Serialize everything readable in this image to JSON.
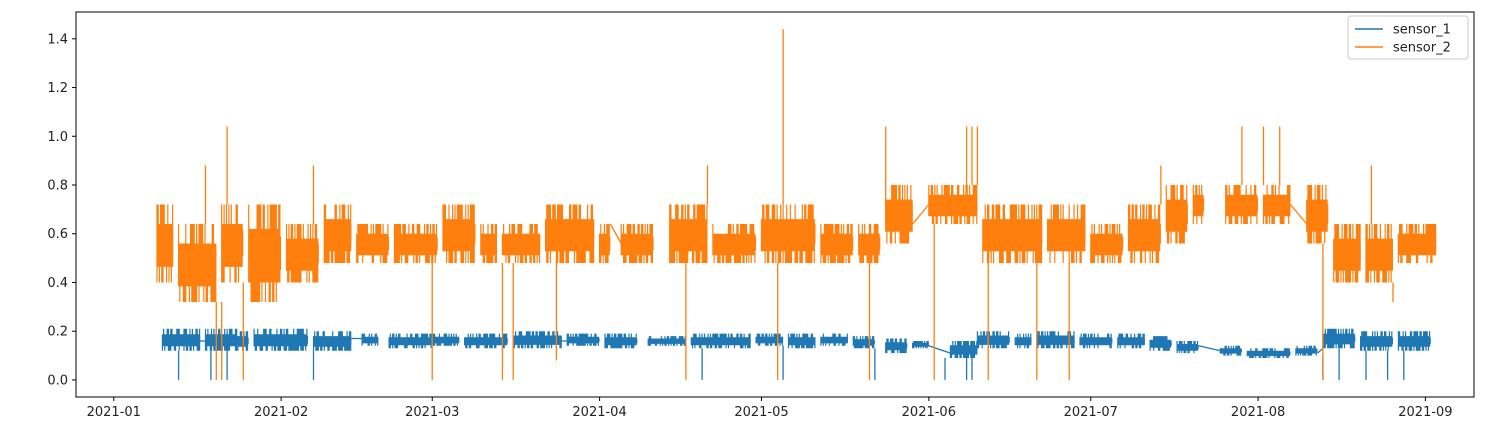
{
  "chart_data": {
    "type": "line",
    "title": "",
    "xlabel": "",
    "ylabel": "",
    "x_type": "date",
    "xlim": [
      "2020-12-25",
      "2021-09-10"
    ],
    "ylim": [
      -0.07,
      1.51
    ],
    "x_ticks": [
      "2021-01",
      "2021-02",
      "2021-03",
      "2021-04",
      "2021-05",
      "2021-06",
      "2021-07",
      "2021-08",
      "2021-09"
    ],
    "y_ticks": [
      "0.0",
      "0.2",
      "0.4",
      "0.6",
      "0.8",
      "1.0",
      "1.2",
      "1.4"
    ],
    "grid": false,
    "legend": {
      "position": "top-right",
      "entries": [
        "sensor_1",
        "sensor_2"
      ]
    },
    "series": [
      {
        "name": "sensor_1",
        "color": "#1f77b4",
        "style": "dense-band",
        "bands": [
          [
            "2021-01-10",
            "2021-01-17",
            0.12,
            0.21
          ],
          [
            "2021-01-18",
            "2021-01-24",
            0.12,
            0.21
          ],
          [
            "2021-01-24",
            "2021-01-26",
            0.12,
            0.2
          ],
          [
            "2021-01-27",
            "2021-02-06",
            0.12,
            0.21
          ],
          [
            "2021-02-07",
            "2021-02-14",
            0.12,
            0.2
          ],
          [
            "2021-02-16",
            "2021-02-19",
            0.14,
            0.19
          ],
          [
            "2021-02-21",
            "2021-03-01",
            0.13,
            0.19
          ],
          [
            "2021-03-01",
            "2021-03-06",
            0.14,
            0.19
          ],
          [
            "2021-03-07",
            "2021-03-15",
            0.13,
            0.19
          ],
          [
            "2021-03-16",
            "2021-03-25",
            0.13,
            0.2
          ],
          [
            "2021-03-26",
            "2021-04-01",
            0.14,
            0.19
          ],
          [
            "2021-04-02",
            "2021-04-08",
            0.13,
            0.19
          ],
          [
            "2021-04-10",
            "2021-04-17",
            0.14,
            0.18
          ],
          [
            "2021-04-18",
            "2021-04-29",
            0.13,
            0.19
          ],
          [
            "2021-04-30",
            "2021-05-05",
            0.14,
            0.19
          ],
          [
            "2021-05-06",
            "2021-05-11",
            0.13,
            0.19
          ],
          [
            "2021-05-12",
            "2021-05-17",
            0.14,
            0.19
          ],
          [
            "2021-05-18",
            "2021-05-22",
            0.13,
            0.18
          ],
          [
            "2021-05-24",
            "2021-05-28",
            0.11,
            0.17
          ],
          [
            "2021-05-29",
            "2021-06-01",
            0.13,
            0.16
          ],
          [
            "2021-06-05",
            "2021-06-10",
            0.09,
            0.16
          ],
          [
            "2021-06-10",
            "2021-06-16",
            0.13,
            0.2
          ],
          [
            "2021-06-17",
            "2021-06-20",
            0.13,
            0.19
          ],
          [
            "2021-06-21",
            "2021-06-28",
            0.13,
            0.2
          ],
          [
            "2021-06-29",
            "2021-07-05",
            0.13,
            0.19
          ],
          [
            "2021-07-06",
            "2021-07-11",
            0.13,
            0.19
          ],
          [
            "2021-07-12",
            "2021-07-16",
            0.12,
            0.18
          ],
          [
            "2021-07-17",
            "2021-07-21",
            0.11,
            0.16
          ],
          [
            "2021-07-25",
            "2021-07-29",
            0.1,
            0.14
          ],
          [
            "2021-07-30",
            "2021-08-07",
            0.09,
            0.13
          ],
          [
            "2021-08-08",
            "2021-08-12",
            0.1,
            0.14
          ],
          [
            "2021-08-13",
            "2021-08-19",
            0.13,
            0.21
          ],
          [
            "2021-08-20",
            "2021-08-26",
            0.12,
            0.2
          ],
          [
            "2021-08-27",
            "2021-09-02",
            0.12,
            0.2
          ]
        ],
        "spikes": [
          [
            "2021-01-13",
            0.0
          ],
          [
            "2021-01-19",
            0.0
          ],
          [
            "2021-01-22",
            0.0
          ],
          [
            "2021-02-07",
            0.0
          ],
          [
            "2021-04-20",
            0.0
          ],
          [
            "2021-05-05",
            0.0
          ],
          [
            "2021-05-22",
            0.0
          ],
          [
            "2021-06-04",
            0.0
          ],
          [
            "2021-06-08",
            0.0
          ],
          [
            "2021-06-09",
            0.0
          ],
          [
            "2021-08-13",
            0.0
          ],
          [
            "2021-08-16",
            0.0
          ],
          [
            "2021-08-21",
            0.0
          ],
          [
            "2021-08-25",
            0.0
          ],
          [
            "2021-08-28",
            0.0
          ]
        ],
        "connectors": [
          [
            "2021-01-17",
            0.16,
            "2021-01-18",
            0.16
          ],
          [
            "2021-02-14",
            0.17,
            "2021-02-16",
            0.17
          ],
          [
            "2021-03-25",
            0.16,
            "2021-03-26",
            0.16
          ],
          [
            "2021-06-01",
            0.14,
            "2021-06-05",
            0.11
          ],
          [
            "2021-07-21",
            0.14,
            "2021-07-25",
            0.12
          ],
          [
            "2021-08-12",
            0.11,
            "2021-08-13",
            0.13
          ]
        ]
      },
      {
        "name": "sensor_2",
        "color": "#ff7f0e",
        "style": "dense-band",
        "bands": [
          [
            "2021-01-09",
            "2021-01-12",
            0.4,
            0.72
          ],
          [
            "2021-01-13",
            "2021-01-20",
            0.32,
            0.64
          ],
          [
            "2021-01-21",
            "2021-01-25",
            0.4,
            0.72
          ],
          [
            "2021-01-26",
            "2021-02-01",
            0.32,
            0.72
          ],
          [
            "2021-02-02",
            "2021-02-08",
            0.4,
            0.64
          ],
          [
            "2021-02-09",
            "2021-02-14",
            0.48,
            0.72
          ],
          [
            "2021-02-15",
            "2021-02-21",
            0.48,
            0.64
          ],
          [
            "2021-02-22",
            "2021-03-02",
            0.48,
            0.64
          ],
          [
            "2021-03-03",
            "2021-03-09",
            0.48,
            0.72
          ],
          [
            "2021-03-10",
            "2021-03-13",
            0.48,
            0.64
          ],
          [
            "2021-03-14",
            "2021-03-21",
            0.48,
            0.64
          ],
          [
            "2021-03-22",
            "2021-03-31",
            0.48,
            0.72
          ],
          [
            "2021-04-01",
            "2021-04-03",
            0.48,
            0.64
          ],
          [
            "2021-04-05",
            "2021-04-11",
            0.48,
            0.64
          ],
          [
            "2021-04-14",
            "2021-04-21",
            0.48,
            0.72
          ],
          [
            "2021-04-22",
            "2021-04-30",
            0.48,
            0.64
          ],
          [
            "2021-05-01",
            "2021-05-11",
            0.48,
            0.72
          ],
          [
            "2021-05-12",
            "2021-05-18",
            0.48,
            0.64
          ],
          [
            "2021-05-19",
            "2021-05-23",
            0.48,
            0.64
          ],
          [
            "2021-05-24",
            "2021-05-29",
            0.56,
            0.8
          ],
          [
            "2021-06-01",
            "2021-06-10",
            0.64,
            0.8
          ],
          [
            "2021-06-11",
            "2021-06-22",
            0.48,
            0.72
          ],
          [
            "2021-06-23",
            "2021-06-30",
            0.48,
            0.72
          ],
          [
            "2021-07-01",
            "2021-07-07",
            0.48,
            0.64
          ],
          [
            "2021-07-08",
            "2021-07-14",
            0.48,
            0.72
          ],
          [
            "2021-07-15",
            "2021-07-19",
            0.56,
            0.8
          ],
          [
            "2021-07-20",
            "2021-07-22",
            0.64,
            0.8
          ],
          [
            "2021-07-26",
            "2021-08-01",
            0.64,
            0.8
          ],
          [
            "2021-08-02",
            "2021-08-07",
            0.64,
            0.8
          ],
          [
            "2021-08-10",
            "2021-08-14",
            0.56,
            0.8
          ],
          [
            "2021-08-15",
            "2021-08-20",
            0.4,
            0.64
          ],
          [
            "2021-08-21",
            "2021-08-26",
            0.4,
            0.64
          ],
          [
            "2021-08-27",
            "2021-09-03",
            0.48,
            0.64
          ]
        ],
        "spikes": [
          [
            "2021-01-18",
            0.88
          ],
          [
            "2021-01-20",
            0.0
          ],
          [
            "2021-01-21",
            0.0
          ],
          [
            "2021-01-22",
            1.04
          ],
          [
            "2021-01-25",
            0.0
          ],
          [
            "2021-02-07",
            0.88
          ],
          [
            "2021-03-01",
            0.0
          ],
          [
            "2021-03-14",
            0.0
          ],
          [
            "2021-03-16",
            0.0
          ],
          [
            "2021-03-24",
            0.08
          ],
          [
            "2021-04-17",
            0.0
          ],
          [
            "2021-04-21",
            0.88
          ],
          [
            "2021-05-04",
            0.0
          ],
          [
            "2021-05-05",
            1.44
          ],
          [
            "2021-05-21",
            0.0
          ],
          [
            "2021-05-24",
            1.04
          ],
          [
            "2021-06-02",
            0.0
          ],
          [
            "2021-06-08",
            1.04
          ],
          [
            "2021-06-09",
            1.04
          ],
          [
            "2021-06-10",
            1.04
          ],
          [
            "2021-06-12",
            0.0
          ],
          [
            "2021-06-21",
            0.0
          ],
          [
            "2021-06-27",
            0.0
          ],
          [
            "2021-07-14",
            0.88
          ],
          [
            "2021-07-29",
            1.04
          ],
          [
            "2021-08-02",
            1.04
          ],
          [
            "2021-08-05",
            1.04
          ],
          [
            "2021-08-13",
            0.0
          ],
          [
            "2021-08-22",
            0.88
          ],
          [
            "2021-08-26",
            0.32
          ]
        ],
        "connectors": [
          [
            "2021-04-03",
            0.64,
            "2021-04-05",
            0.56
          ],
          [
            "2021-05-29",
            0.64,
            "2021-06-01",
            0.72
          ],
          [
            "2021-08-07",
            0.72,
            "2021-08-10",
            0.64
          ]
        ]
      }
    ]
  }
}
